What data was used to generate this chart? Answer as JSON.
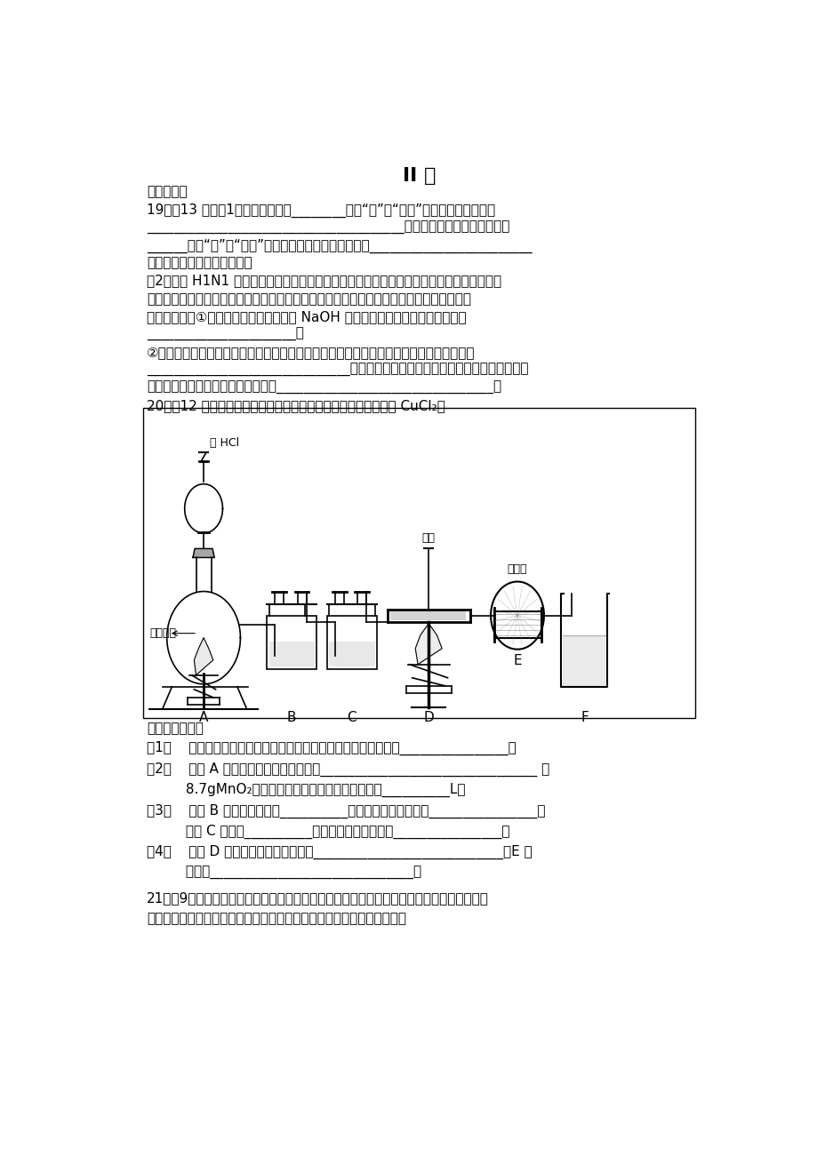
{
  "bg_color": "#ffffff",
  "title": "II 卷",
  "section": "二、填空题",
  "q19_lines": [
    "19．（13 分）（1）金属钓着火，________（填“能”或“不能”）用水灭火，原因是",
    "______________________________________（用化学反应方程试解释）；",
    "______（填“能”或“不能”）用泡沫灭火器灭火，原因是________________________",
    "（用化学反应方程试解释）。",
    "（2）甲型 H1N1 流感病毒在全球广泛传播，给人类健康、社会经济带来了巨大的负面影响。",
    "我国采取积极应对措施，使病毒得到了有效控制，从很大程度上减少了损失，在这里，消毒",
    "液功不可没。①生产消毒液是将氯气通入 NaOH 溶液中，发生的离子反应方程式为",
    "______________________。",
    "②消毒液稀释后噴洒在空气中，可以生成有漂白性的物质，请写出此过程的离子反应方程式",
    "______________________________；该物质有漂白性是因为它有强氧化性，但是它很",
    "不稳定，请写出它分解的化学方程式________________________________。"
  ],
  "q20_header": "20．（12 分）实验室用下图所示的实验装置制取纯净干燥的无水 CuCl₂。",
  "q20_answer_lines": [
    "回答下列问题：",
    "（1）    仪器按上图连接好后，在添加药品前必须进行的实验操作是________________。",
    "（2）    装置 A 中发生的化学反应方程式是________________________________ 。",
    "         8.7gMnO₂与足量浓盐酸反应生成标况下的氯气__________L。",
    "（3）    装置 B 的广口瓶中盛有__________（写名称），其作用是________________；",
    "         装置 C 中盛有__________（写名称），其作用是________________。",
    "（4）    写出 D 中发生的化学反应方程式____________________________，E 的",
    "         作用是______________________________。"
  ],
  "q21_lines": [
    "21．（9分）甲、乙、丙三位同学分别用如下三套实验装置及化学药品（其中碱石灰为固体氯",
    "氧化钙和生石灰的混合物）制取氨气。请你参与探究，并回答下列问题："
  ]
}
